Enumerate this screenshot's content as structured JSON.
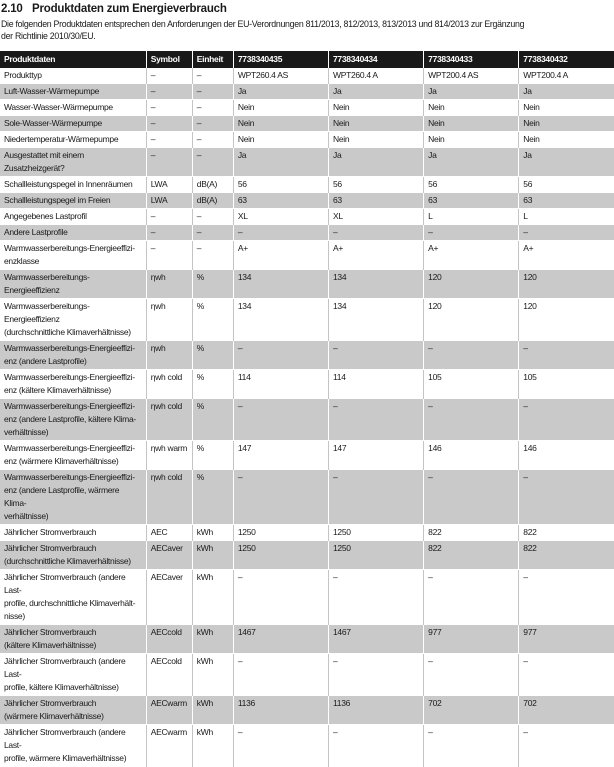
{
  "heading": {
    "number": "2.10",
    "title": "Produktdaten zum Energieverbrauch"
  },
  "intro": {
    "text": "Die folgenden Produktdaten entsprechen den Anforderungen der EU-Verordnungen 811/2013, 812/2013, 813/2013 und 814/2013 zur Ergänzung\nder Richtlinie 2010/30/EU."
  },
  "colors": {
    "table_header_bg": "#191919",
    "table_header_text": "#ffffff",
    "row_alt_bg": "#c9c9c9",
    "body_text": "#1a1a1a"
  },
  "table": {
    "columns": [
      "Produktdaten",
      "Symbol",
      "Einheit",
      "7738340435",
      "7738340434",
      "7738340433",
      "7738340432"
    ],
    "rows": [
      {
        "label": "Produkttyp",
        "symbol": "–",
        "unit": "–",
        "values": [
          "WPT260.4 AS",
          "WPT260.4 A",
          "WPT200.4 AS",
          "WPT200.4 A"
        ]
      },
      {
        "label": "Luft-Wasser-Wärmepumpe",
        "symbol": "–",
        "unit": "–",
        "values": [
          "Ja",
          "Ja",
          "Ja",
          "Ja"
        ]
      },
      {
        "label": "Wasser-Wasser-Wärmepumpe",
        "symbol": "–",
        "unit": "–",
        "values": [
          "Nein",
          "Nein",
          "Nein",
          "Nein"
        ]
      },
      {
        "label": "Sole-Wasser-Wärmepumpe",
        "symbol": "–",
        "unit": "–",
        "values": [
          "Nein",
          "Nein",
          "Nein",
          "Nein"
        ]
      },
      {
        "label": "Niedertemperatur-Wärmepumpe",
        "symbol": "–",
        "unit": "–",
        "values": [
          "Nein",
          "Nein",
          "Nein",
          "Nein"
        ]
      },
      {
        "label": "Ausgestattet mit einem Zusatzheizgerät?",
        "symbol": "–",
        "unit": "–",
        "values": [
          "Ja",
          "Ja",
          "Ja",
          "Ja"
        ]
      },
      {
        "label": "Schallleistungspegel in Innenräumen",
        "symbol": "LWA",
        "unit": "dB(A)",
        "values": [
          "56",
          "56",
          "56",
          "56"
        ]
      },
      {
        "label": "Schallleistungspegel im Freien",
        "symbol": "LWA",
        "unit": "dB(A)",
        "values": [
          "63",
          "63",
          "63",
          "63"
        ]
      },
      {
        "label": "Angegebenes Lastprofil",
        "symbol": "–",
        "unit": "–",
        "values": [
          "XL",
          "XL",
          "L",
          "L"
        ]
      },
      {
        "label": "Andere Lastprofile",
        "symbol": "–",
        "unit": "–",
        "values": [
          "–",
          "–",
          "–",
          "–"
        ]
      },
      {
        "label": "Warmwasserbereitungs-Energieeffizi-\nenzklasse",
        "symbol": "–",
        "unit": "–",
        "values": [
          "A+",
          "A+",
          "A+",
          "A+"
        ]
      },
      {
        "label": "Warmwasserbereitungs-Energieeffizienz",
        "symbol": "ηwh",
        "unit": "%",
        "values": [
          "134",
          "134",
          "120",
          "120"
        ]
      },
      {
        "label": "Warmwasserbereitungs-Energieeffizienz\n(durchschnittliche Klimaverhältnisse)",
        "symbol": "ηwh",
        "unit": "%",
        "values": [
          "134",
          "134",
          "120",
          "120"
        ]
      },
      {
        "label": "Warmwasserbereitungs-Energieeffizi-\nenz (andere Lastprofile)",
        "symbol": "ηwh",
        "unit": "%",
        "values": [
          "–",
          "–",
          "–",
          "–"
        ]
      },
      {
        "label": "Warmwasserbereitungs-Energieeffizi-\nenz (kältere Klimaverhältnisse)",
        "symbol": "ηwh cold",
        "unit": "%",
        "values": [
          "114",
          "114",
          "105",
          "105"
        ]
      },
      {
        "label": "Warmwasserbereitungs-Energieeffizi-\nenz (andere Lastprofile, kältere Klima-\nverhältnisse)",
        "symbol": "ηwh cold",
        "unit": "%",
        "values": [
          "–",
          "–",
          "–",
          "–"
        ]
      },
      {
        "label": "Warmwasserbereitungs-Energieeffizi-\nenz (wärmere Klimaverhältnisse)",
        "symbol": "ηwh warm",
        "unit": "%",
        "values": [
          "147",
          "147",
          "146",
          "146"
        ]
      },
      {
        "label": "Warmwasserbereitungs-Energieeffizi-\nenz (andere Lastprofile, wärmere Klima-\nverhältnisse)",
        "symbol": "ηwh cold",
        "unit": "%",
        "values": [
          "–",
          "–",
          "–",
          "–"
        ]
      },
      {
        "label": "Jährlicher Stromverbrauch",
        "symbol": "AEC",
        "unit": "kWh",
        "values": [
          "1250",
          "1250",
          "822",
          "822"
        ]
      },
      {
        "label": "Jährlicher Stromverbrauch\n(durchschnittliche Klimaverhältnisse)",
        "symbol": "AECaver",
        "unit": "kWh",
        "values": [
          "1250",
          "1250",
          "822",
          "822"
        ]
      },
      {
        "label": "Jährlicher Stromverbrauch (andere Last-\nprofile, durchschnittliche Klimaverhält-\nnisse)",
        "symbol": "AECaver",
        "unit": "kWh",
        "values": [
          "–",
          "–",
          "–",
          "–"
        ]
      },
      {
        "label": "Jährlicher Stromverbrauch\n(kältere Klimaverhältnisse)",
        "symbol": "AECcold",
        "unit": "kWh",
        "values": [
          "1467",
          "1467",
          "977",
          "977"
        ]
      },
      {
        "label": "Jährlicher Stromverbrauch (andere Last-\nprofile, kältere Klimaverhältnisse)",
        "symbol": "AECcold",
        "unit": "kWh",
        "values": [
          "–",
          "–",
          "–",
          "–"
        ]
      },
      {
        "label": "Jährlicher Stromverbrauch\n(wärmere Klimaverhältnisse)",
        "symbol": "AECwarm",
        "unit": "kWh",
        "values": [
          "1136",
          "1136",
          "702",
          "702"
        ]
      },
      {
        "label": "Jährlicher Stromverbrauch (andere Last-\nprofile, wärmere Klimaverhältnisse)",
        "symbol": "AECwarm",
        "unit": "kWh",
        "values": [
          "–",
          "–",
          "–",
          "–"
        ]
      }
    ]
  }
}
